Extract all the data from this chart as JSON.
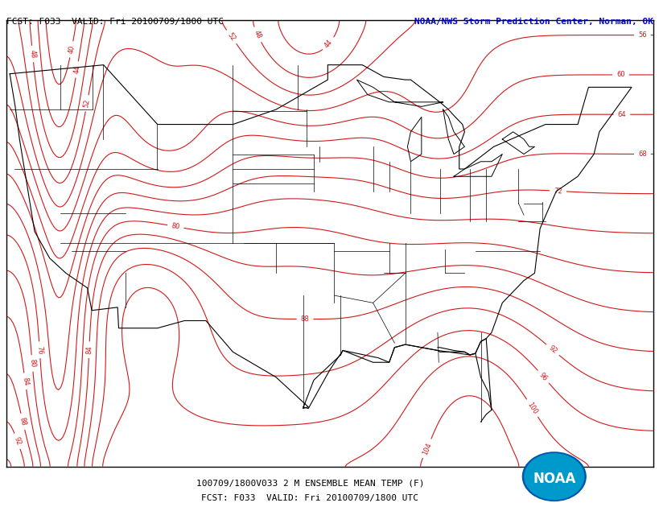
{
  "title_left": "FCST: F033  VALID: Fri 20100709/1800 UTC",
  "title_right": "NOAA/NWS Storm Prediction Center, Norman, OK",
  "bottom_label1": "100709/1800V033 2 M ENSEMBLE MEAN TEMP (F)",
  "bottom_label2": "FCST: F033  VALID: Fri 20100709/1800 UTC",
  "contour_color": "#cc0000",
  "border_color": "#000000",
  "background_color": "#ffffff",
  "title_right_color": "#0000cc",
  "contour_interval": 4,
  "contour_min": 40,
  "contour_max": 104,
  "map_extent": [
    -125,
    -65,
    22,
    52
  ]
}
